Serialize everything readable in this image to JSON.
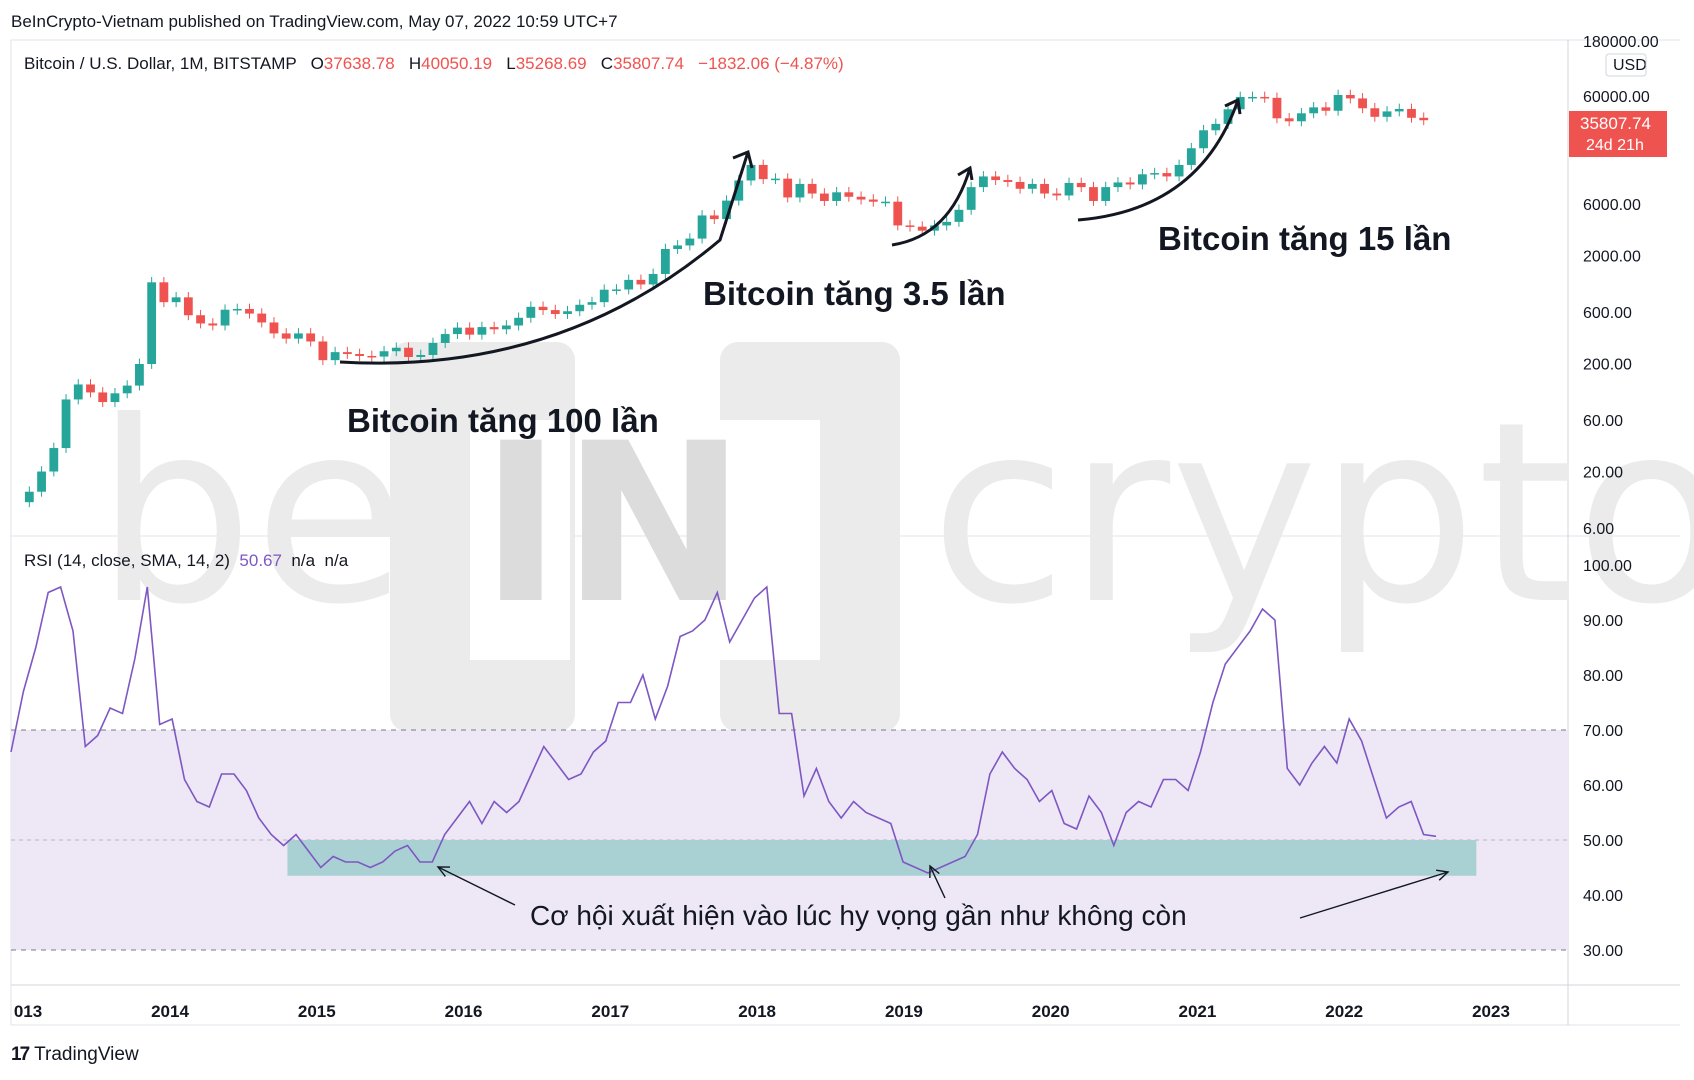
{
  "header": {
    "publisher": "BeInCrypto-Vietnam published on TradingView.com, May 07, 2022 10:59 UTC+7"
  },
  "legend": {
    "symbol": "Bitcoin / U.S. Dollar, 1M, BITSTAMP",
    "open_label": "O",
    "open": "37638.78",
    "high_label": "H",
    "high": "40050.19",
    "low_label": "L",
    "low": "35268.69",
    "close_label": "C",
    "close": "35807.74",
    "change": "−1832.06 (−4.87%)"
  },
  "rsi_legend": {
    "label": "RSI (14, close, SMA, 14, 2)",
    "value": "50.67",
    "na1": "n/a",
    "na2": "n/a"
  },
  "price_badge": {
    "price": "35807.74",
    "countdown": "24d 21h"
  },
  "footer": {
    "brand": "TradingView"
  },
  "watermark": "beincrypto",
  "colors": {
    "up": "#26a69a",
    "down": "#ef5350",
    "rsi": "#7e57c2",
    "band": "#ede7f6",
    "zone": "#a9d1d3"
  },
  "chart_data": [
    {
      "type": "candlestick",
      "title": "Bitcoin / U.S. Dollar, 1M, BITSTAMP",
      "y_scale": "log",
      "y_unit": "USD",
      "y_ticks": [
        "180000.00",
        "60000.00",
        "6000.00",
        "2000.00",
        "600.00",
        "200.00",
        "60.00",
        "20.00",
        "6.00"
      ],
      "x_ticks": [
        "013",
        "2014",
        "2015",
        "2016",
        "2017",
        "2018",
        "2019",
        "2020",
        "2021",
        "2022",
        "2023"
      ],
      "annotations": [
        "Bitcoin tăng 100 lần",
        "Bitcoin tăng 3.5 lần",
        "Bitcoin tăng 15 lần"
      ],
      "monthly_close_usd": [
        13,
        20,
        33,
        93,
        128,
        108,
        88,
        106,
        125,
        198,
        1130,
        740,
        820,
        560,
        470,
        450,
        630,
        640,
        580,
        480,
        380,
        340,
        380,
        320,
        215,
        255,
        245,
        235,
        232,
        260,
        280,
        230,
        240,
        310,
        375,
        430,
        370,
        435,
        415,
        450,
        530,
        670,
        625,
        575,
        610,
        700,
        740,
        965,
        970,
        1190,
        1080,
        1350,
        2300,
        2480,
        2870,
        4700,
        4350,
        6450,
        9900,
        13800,
        10200,
        10300,
        6900,
        9200,
        7500,
        6400,
        7700,
        7000,
        6600,
        6300,
        6300,
        3800,
        3700,
        3400,
        3800,
        4100,
        5300,
        8600,
        10800,
        10000,
        9600,
        8300,
        9200,
        7500,
        7200,
        9400,
        8600,
        6400,
        8600,
        9500,
        9100,
        11300,
        11600,
        10800,
        13800,
        19700,
        28900,
        33100,
        45200,
        58800,
        58800,
        57700,
        37300,
        35000,
        41500,
        47100,
        43800,
        61300,
        57000,
        46200,
        38500,
        43200,
        45500,
        37700,
        35800
      ],
      "rsi_overbought": 70,
      "rsi_oversold": 30,
      "rsi_midline": 50
    },
    {
      "type": "line",
      "title": "RSI (14, close, SMA, 14, 2)",
      "y_ticks": [
        "100.00",
        "90.00",
        "80.00",
        "70.00",
        "60.00",
        "50.00",
        "40.00",
        "30.00"
      ],
      "ylim": [
        25,
        105
      ],
      "start_year": 2013.0,
      "values": [
        66,
        77,
        85,
        95,
        96,
        88,
        67,
        69,
        74,
        73,
        83,
        96,
        71,
        72,
        61,
        57,
        56,
        62,
        62,
        59,
        54,
        51,
        49,
        51,
        48,
        45,
        47,
        46,
        46,
        45,
        46,
        48,
        49,
        46,
        46,
        51,
        54,
        57,
        53,
        57,
        55,
        57,
        62,
        67,
        64,
        61,
        62,
        66,
        68,
        75,
        75,
        80,
        72,
        78,
        87,
        88,
        90,
        95,
        86,
        90,
        94,
        96,
        73,
        73,
        58,
        63,
        57,
        54,
        57,
        55,
        54,
        53,
        46,
        45,
        44,
        45,
        46,
        47,
        51,
        62,
        66,
        63,
        61,
        57,
        59,
        53,
        52,
        58,
        55,
        49,
        55,
        57,
        56,
        61,
        61,
        59,
        66,
        75,
        82,
        85,
        88,
        92,
        90,
        63,
        60,
        64,
        67,
        64,
        72,
        68,
        61,
        54,
        56,
        57,
        51,
        50.67
      ],
      "annotation": "Cơ hội xuất hiện vào lúc hy vọng gần như không còn",
      "highlight_zone": {
        "y_from": 43.5,
        "y_to": 50,
        "x_from": "2014.8",
        "x_to": "2022.9"
      }
    }
  ]
}
